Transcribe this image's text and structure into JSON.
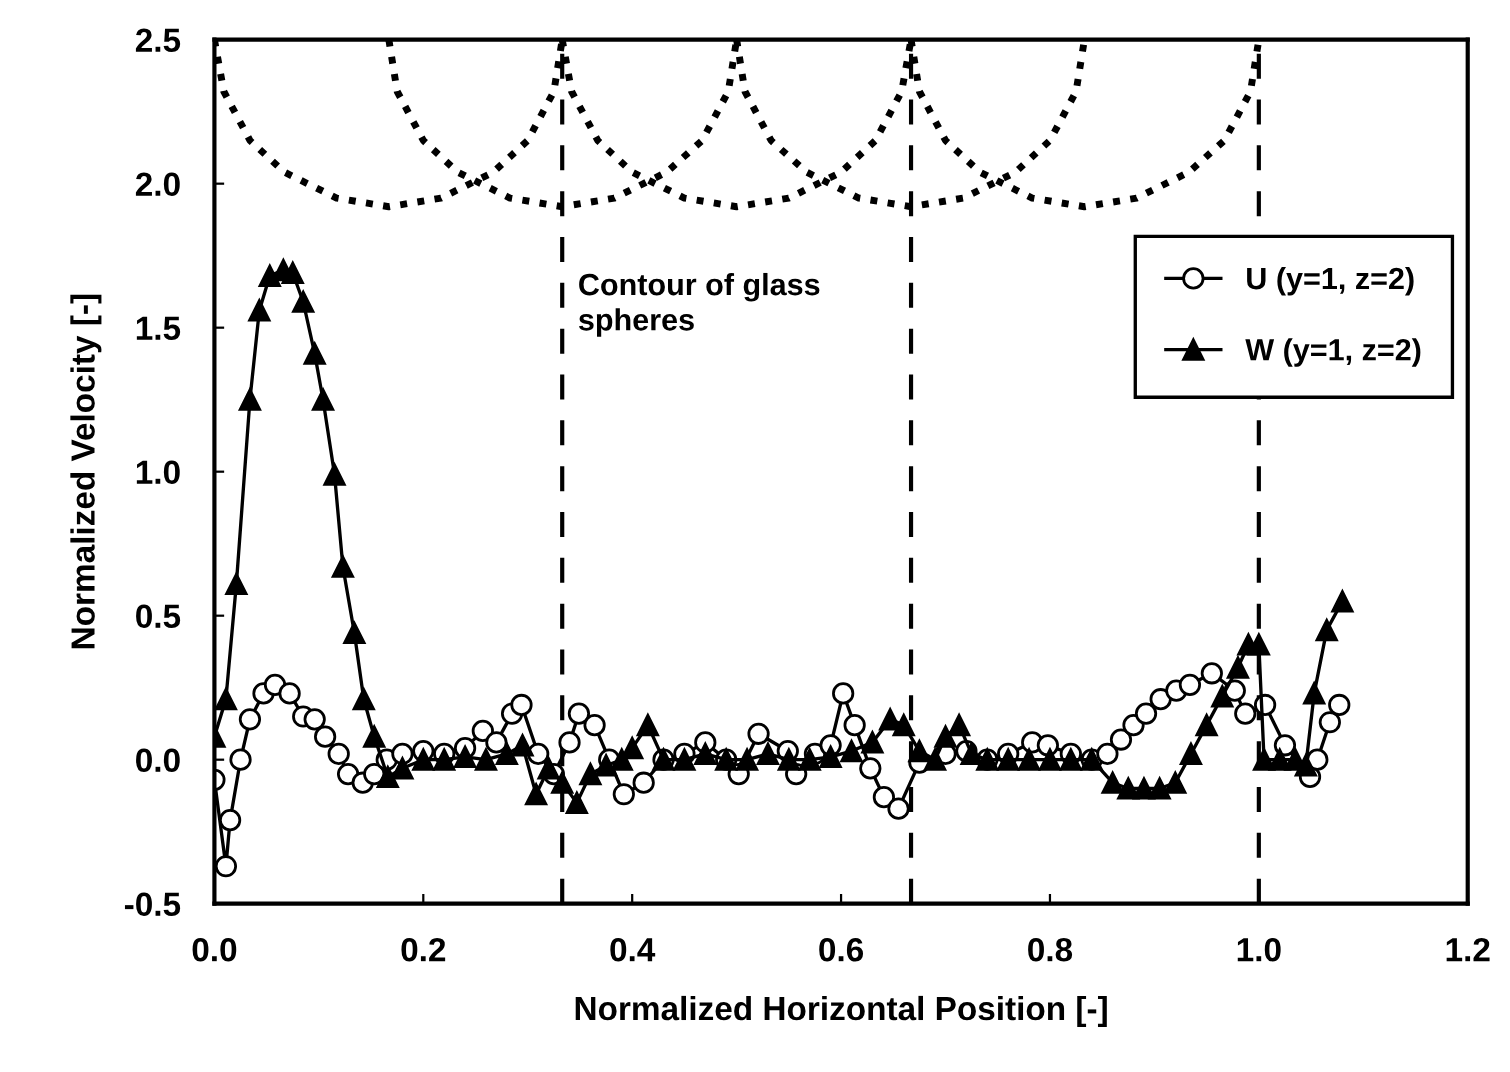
{
  "chart_data": {
    "type": "line",
    "xlabel": "Normalized Horizontal Position [-]",
    "ylabel": "Normalized Velocity [-]",
    "annotations": [
      "Contour of glass\nspheres"
    ],
    "xlim": [
      0,
      1.2
    ],
    "ylim": [
      -0.5,
      2.5
    ],
    "xticks": [
      {
        "value": 0,
        "label": "0.0"
      },
      {
        "value": 0.2,
        "label": "0.2"
      },
      {
        "value": 0.4,
        "label": "0.4"
      },
      {
        "value": 0.6,
        "label": "0.6"
      },
      {
        "value": 0.8,
        "label": "0.8"
      },
      {
        "value": 1.0,
        "label": "1.0"
      },
      {
        "value": 1.2,
        "label": "1.2"
      }
    ],
    "yticks": [
      {
        "value": -0.5,
        "label": "-0.5"
      },
      {
        "value": 0,
        "label": "0.0"
      },
      {
        "value": 0.5,
        "label": "0.5"
      },
      {
        "value": 1.0,
        "label": "1.0"
      },
      {
        "value": 1.5,
        "label": "1.5"
      },
      {
        "value": 2.0,
        "label": "2.0"
      },
      {
        "value": 2.5,
        "label": "2.5"
      }
    ],
    "grid": false,
    "legend": "top right",
    "ref_lines": [
      {
        "axis": "x",
        "value": 0.333,
        "color": "#000000",
        "line_style": "dashed"
      },
      {
        "axis": "x",
        "value": 0.667,
        "color": "#000000",
        "line_style": "dashed"
      },
      {
        "axis": "x",
        "value": 1.0,
        "color": "#000000",
        "line_style": "dashed"
      }
    ],
    "series": [
      {
        "color": "#000000",
        "line_style": "dotted",
        "marker": "none",
        "x": [
          0.0,
          0.009,
          0.034,
          0.067,
          0.117,
          0.167,
          0.217,
          0.267,
          0.3,
          0.325,
          0.333
        ],
        "values": [
          2.5,
          2.32,
          2.15,
          2.04,
          1.95,
          1.92,
          1.95,
          2.04,
          2.15,
          2.32,
          2.5
        ]
      },
      {
        "color": "#000000",
        "line_style": "dotted",
        "marker": "none",
        "x": [
          0.167,
          0.175,
          0.2,
          0.233,
          0.283,
          0.333,
          0.383,
          0.433,
          0.467,
          0.492,
          0.5
        ],
        "values": [
          2.5,
          2.32,
          2.15,
          2.04,
          1.95,
          1.92,
          1.95,
          2.04,
          2.15,
          2.32,
          2.5
        ]
      },
      {
        "color": "#000000",
        "line_style": "dotted",
        "marker": "none",
        "x": [
          0.333,
          0.342,
          0.367,
          0.4,
          0.45,
          0.5,
          0.55,
          0.6,
          0.633,
          0.658,
          0.667
        ],
        "values": [
          2.5,
          2.32,
          2.15,
          2.04,
          1.95,
          1.92,
          1.95,
          2.04,
          2.15,
          2.32,
          2.5
        ]
      },
      {
        "color": "#000000",
        "line_style": "dotted",
        "marker": "none",
        "x": [
          0.5,
          0.508,
          0.533,
          0.567,
          0.617,
          0.667,
          0.717,
          0.767,
          0.8,
          0.825,
          0.833
        ],
        "values": [
          2.5,
          2.32,
          2.15,
          2.04,
          1.95,
          1.92,
          1.95,
          2.04,
          2.15,
          2.32,
          2.5
        ]
      },
      {
        "color": "#000000",
        "line_style": "dotted",
        "marker": "none",
        "x": [
          0.667,
          0.675,
          0.7,
          0.733,
          0.783,
          0.833,
          0.883,
          0.933,
          0.967,
          0.992,
          1.0
        ],
        "values": [
          2.5,
          2.32,
          2.15,
          2.04,
          1.95,
          1.92,
          1.95,
          2.04,
          2.15,
          2.32,
          2.5
        ]
      },
      {
        "name": "U (y=1, z=2)",
        "color": "#000000",
        "line_style": "solid",
        "marker": "circle",
        "x": [
          0.0,
          0.011,
          0.015,
          0.025,
          0.034,
          0.047,
          0.058,
          0.072,
          0.085,
          0.096,
          0.106,
          0.119,
          0.128,
          0.142,
          0.153,
          0.165,
          0.18,
          0.2,
          0.22,
          0.24,
          0.257,
          0.27,
          0.285,
          0.294,
          0.31,
          0.325,
          0.34,
          0.349,
          0.364,
          0.378,
          0.392,
          0.411,
          0.43,
          0.45,
          0.47,
          0.49,
          0.502,
          0.521,
          0.549,
          0.557,
          0.575,
          0.59,
          0.602,
          0.613,
          0.628,
          0.641,
          0.655,
          0.675,
          0.7,
          0.72,
          0.74,
          0.76,
          0.783,
          0.798,
          0.82,
          0.84,
          0.855,
          0.868,
          0.88,
          0.892,
          0.906,
          0.921,
          0.934,
          0.955,
          0.977,
          0.987,
          1.006,
          1.025,
          1.049,
          1.056,
          1.068,
          1.077
        ],
        "values": [
          -0.07,
          -0.37,
          -0.21,
          0.0,
          0.14,
          0.23,
          0.26,
          0.23,
          0.15,
          0.14,
          0.08,
          0.02,
          -0.05,
          -0.08,
          -0.05,
          0.0,
          0.02,
          0.03,
          0.02,
          0.04,
          0.1,
          0.06,
          0.16,
          0.19,
          0.02,
          -0.05,
          0.06,
          0.16,
          0.12,
          0.0,
          -0.12,
          -0.08,
          0.0,
          0.02,
          0.06,
          0.0,
          -0.05,
          0.09,
          0.03,
          -0.05,
          0.02,
          0.05,
          0.23,
          0.12,
          -0.03,
          -0.13,
          -0.17,
          -0.01,
          0.02,
          0.03,
          0.0,
          0.02,
          0.06,
          0.05,
          0.02,
          0.0,
          0.02,
          0.07,
          0.12,
          0.16,
          0.21,
          0.24,
          0.26,
          0.3,
          0.24,
          0.16,
          0.19,
          0.05,
          -0.06,
          0.0,
          0.13,
          0.19
        ]
      },
      {
        "name": "W (y=1, z=2)",
        "color": "#000000",
        "line_style": "solid",
        "marker": "triangle",
        "x": [
          0.0,
          0.011,
          0.021,
          0.034,
          0.043,
          0.053,
          0.066,
          0.075,
          0.085,
          0.096,
          0.104,
          0.115,
          0.123,
          0.134,
          0.143,
          0.153,
          0.166,
          0.18,
          0.2,
          0.22,
          0.24,
          0.26,
          0.28,
          0.295,
          0.308,
          0.32,
          0.333,
          0.347,
          0.36,
          0.375,
          0.39,
          0.4,
          0.415,
          0.43,
          0.45,
          0.47,
          0.49,
          0.51,
          0.53,
          0.55,
          0.57,
          0.59,
          0.61,
          0.63,
          0.647,
          0.66,
          0.675,
          0.69,
          0.7,
          0.713,
          0.725,
          0.74,
          0.76,
          0.78,
          0.8,
          0.82,
          0.84,
          0.86,
          0.875,
          0.89,
          0.905,
          0.92,
          0.935,
          0.95,
          0.965,
          0.98,
          0.99,
          1.0,
          1.005,
          1.02,
          1.035,
          1.045,
          1.053,
          1.065,
          1.08
        ],
        "values": [
          0.08,
          0.21,
          0.61,
          1.25,
          1.56,
          1.68,
          1.7,
          1.69,
          1.59,
          1.41,
          1.25,
          0.99,
          0.67,
          0.44,
          0.21,
          0.08,
          -0.06,
          -0.03,
          0.0,
          0.0,
          0.01,
          0.0,
          0.02,
          0.05,
          -0.12,
          -0.03,
          -0.08,
          -0.15,
          -0.05,
          -0.02,
          0.0,
          0.04,
          0.12,
          0.0,
          0.0,
          0.02,
          0.0,
          0.0,
          0.02,
          0.0,
          0.0,
          0.01,
          0.03,
          0.06,
          0.14,
          0.12,
          0.03,
          0.0,
          0.08,
          0.12,
          0.02,
          0.0,
          0.0,
          0.0,
          0.0,
          0.0,
          0.0,
          -0.08,
          -0.1,
          -0.1,
          -0.1,
          -0.08,
          0.02,
          0.12,
          0.22,
          0.32,
          0.4,
          0.4,
          0.0,
          0.0,
          0.0,
          -0.02,
          0.23,
          0.45,
          0.55
        ]
      }
    ]
  }
}
